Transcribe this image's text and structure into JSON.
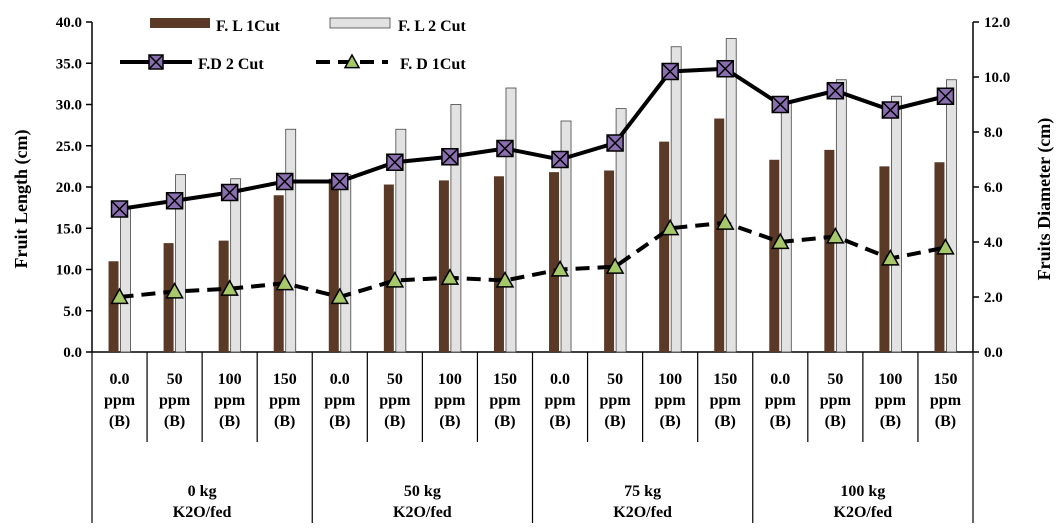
{
  "chart_data": {
    "type": "bar",
    "ylabel": "Fruit Length (cm)",
    "y2label": "Fruits Diameter (cm)",
    "ylim": [
      0,
      40
    ],
    "y2lim": [
      0,
      12
    ],
    "yticks": [
      "0.0",
      "5.0",
      "10.0",
      "15.0",
      "20.0",
      "25.0",
      "30.0",
      "35.0",
      "40.0"
    ],
    "y2ticks": [
      "0.0",
      "2.0",
      "4.0",
      "6.0",
      "8.0",
      "10.0",
      "12.0"
    ],
    "category_lines": [
      [
        "0.0",
        "ppm",
        "(B)"
      ],
      [
        "50",
        "ppm",
        "(B)"
      ],
      [
        "100",
        "ppm",
        "(B)"
      ],
      [
        "150",
        "ppm",
        "(B)"
      ],
      [
        "0.0",
        "ppm",
        "(B)"
      ],
      [
        "50",
        "ppm",
        "(B)"
      ],
      [
        "100",
        "ppm",
        "(B)"
      ],
      [
        "150",
        "ppm",
        "(B)"
      ],
      [
        "0.0",
        "ppm",
        "(B)"
      ],
      [
        "50",
        "ppm",
        "(B)"
      ],
      [
        "100",
        "ppm",
        "(B)"
      ],
      [
        "150",
        "ppm",
        "(B)"
      ],
      [
        "0.0",
        "ppm",
        "(B)"
      ],
      [
        "50",
        "ppm",
        "(B)"
      ],
      [
        "100",
        "ppm",
        "(B)"
      ],
      [
        "150",
        "ppm",
        "(B)"
      ]
    ],
    "groups": [
      [
        "0 kg",
        "K2O/fed"
      ],
      [
        "50 kg",
        "K2O/fed"
      ],
      [
        "75 kg",
        "K2O/fed"
      ],
      [
        "100 kg",
        "K2O/fed"
      ]
    ],
    "bar_series": [
      {
        "name": "F. L 1Cut",
        "color": "#5a3a26",
        "values": [
          11.0,
          13.2,
          13.5,
          19.0,
          21.0,
          20.3,
          20.8,
          21.3,
          21.8,
          22.0,
          25.5,
          28.3,
          23.3,
          24.5,
          22.5,
          23.0
        ]
      },
      {
        "name": "F. L 2 Cut",
        "color": "#e2e2e2",
        "values": [
          17.5,
          21.5,
          21.0,
          27.0,
          21.5,
          27.0,
          30.0,
          32.0,
          28.0,
          29.5,
          37.0,
          38.0,
          30.5,
          33.0,
          31.0,
          33.0
        ]
      }
    ],
    "line_series": [
      {
        "name": "F.D 2 Cut",
        "marker": "x-square",
        "color": "#000000",
        "marker_fill": "#8a6fb0",
        "dashed": false,
        "values": [
          5.2,
          5.5,
          5.8,
          6.2,
          6.2,
          6.9,
          7.1,
          7.4,
          7.0,
          7.6,
          10.2,
          10.3,
          9.0,
          9.5,
          8.8,
          9.3
        ]
      },
      {
        "name": "F. D 1Cut",
        "marker": "triangle",
        "color": "#000000",
        "marker_fill": "#a6c86a",
        "dashed": true,
        "values": [
          2.0,
          2.2,
          2.3,
          2.5,
          2.0,
          2.6,
          2.7,
          2.6,
          3.0,
          3.1,
          4.5,
          4.7,
          4.0,
          4.2,
          3.4,
          3.8
        ]
      }
    ]
  }
}
